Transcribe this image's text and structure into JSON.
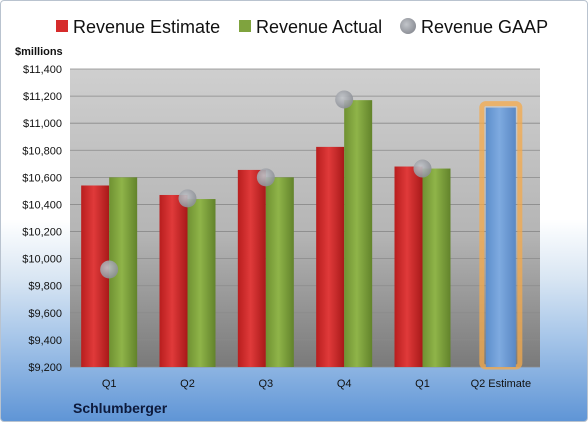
{
  "chart_data": {
    "type": "bar",
    "ylabel": "$millions",
    "company": "Schlumberger",
    "ylim": [
      9200,
      11400
    ],
    "yticks": [
      9200,
      9400,
      9600,
      9800,
      10000,
      10200,
      10400,
      10600,
      10800,
      11000,
      11200,
      11400
    ],
    "ytick_labels": [
      "$9,200",
      "$9,400",
      "$9,600",
      "$9,800",
      "$10,000",
      "$10,200",
      "$10,400",
      "$10,600",
      "$10,800",
      "$11,000",
      "$11,200",
      "$11,400"
    ],
    "categories": [
      "Q1",
      "Q2",
      "Q3",
      "Q4",
      "Q1",
      "Q2 Estimate"
    ],
    "legend_position": "top",
    "grid": true,
    "series": [
      {
        "name": "Revenue Estimate",
        "kind": "bar",
        "color": "#d62b2b",
        "values": [
          10540,
          10470,
          10655,
          10825,
          10680,
          null
        ]
      },
      {
        "name": "Revenue Actual",
        "kind": "bar",
        "color": "#7fa33e",
        "values": [
          10600,
          10440,
          10600,
          11170,
          10665,
          null
        ]
      },
      {
        "name": "Revenue GAAP",
        "kind": "marker",
        "color": "#9a9ea6",
        "values": [
          9920,
          10445,
          10600,
          11175,
          10665,
          null
        ]
      },
      {
        "name": "",
        "kind": "bar",
        "color": "#6f9fd8",
        "highlight": "#f4a94b",
        "values": [
          null,
          null,
          null,
          null,
          null,
          11115
        ]
      }
    ]
  }
}
